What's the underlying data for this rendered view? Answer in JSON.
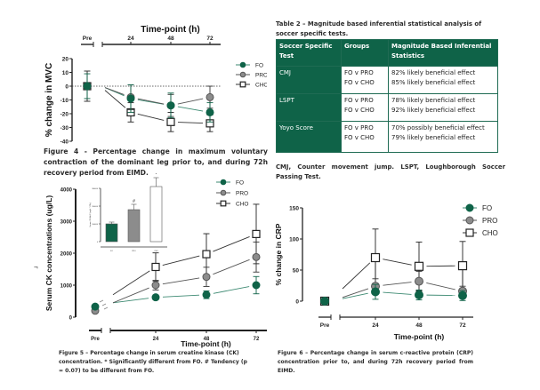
{
  "figure4": {
    "caption": "Figure 4 - Percentage change in maximum voluntary contraction of the dominant leg prior to, and during 72h recovery period from EIMD."
  },
  "figure5": {
    "caption": "Figure 5 – Percentage change in serum creatine kinase (CK) concentration. * Significantly different from FO. # Tendency (p = 0.07) to be different from FO."
  },
  "figure6": {
    "caption": "Figure 6 – Percentage change in serum c-reactive protein (CRP) concentration prior to, and during 72h recovery period from EIMD."
  },
  "table2": {
    "title": "Table 2 – Magnitude based inferential statistical analysis of soccer specific tests.",
    "headers": [
      "Soccer Specific Test",
      "Groups",
      "Magnitude Based Inferential Statistics"
    ],
    "rows": [
      {
        "test": "CMJ",
        "groups": [
          "FO v PRO",
          "FO v CHO"
        ],
        "stats": [
          "82% likely beneficial effect",
          "85% likely beneficial effect"
        ]
      },
      {
        "test": "LSPT",
        "groups": [
          "FO v PRO",
          "FO v CHO"
        ],
        "stats": [
          "78% likely beneficial effect",
          "92% likely beneficial effect"
        ]
      },
      {
        "test": "Yoyo Score",
        "groups": [
          "FO v PRO",
          "FO v CHO"
        ],
        "stats": [
          "70% possibly beneficial effect",
          "79% likely beneficial effect"
        ]
      }
    ],
    "note": "CMJ, Counter movement jump. LSPT, Loughborough Soccer Passing Test."
  },
  "colors": {
    "FO": "#0f6348",
    "PRO": "#8c8c8c",
    "CHO": "#ffffff",
    "table_header": "#0f6348"
  },
  "chart_data": [
    {
      "id": "mvc",
      "type": "line",
      "title": "",
      "xlabel": "Time-point (h)",
      "ylabel": "% change in MVC",
      "categories": [
        "Pre",
        "24",
        "48",
        "72"
      ],
      "yticks": [
        20,
        10,
        0,
        -10,
        -20,
        -30,
        -40
      ],
      "ylim": [
        -40,
        20
      ],
      "reference_line": 0,
      "legend": "right",
      "series": [
        {
          "name": "FO",
          "marker": "filled-circle",
          "values": [
            0,
            -9,
            -14,
            -19
          ],
          "err": [
            9,
            10,
            9,
            7
          ]
        },
        {
          "name": "PRO",
          "marker": "grey-circle",
          "values": [
            0,
            -8,
            -14,
            -8
          ],
          "err": [
            11,
            9,
            8,
            8
          ]
        },
        {
          "name": "CHO",
          "marker": "open-square",
          "values": [
            0,
            -19,
            -26,
            -27
          ],
          "err": [
            11,
            7,
            7,
            6
          ]
        }
      ]
    },
    {
      "id": "ck",
      "type": "line",
      "title": "",
      "xlabel": "Time-point (h)",
      "ylabel": "Serum CK concentrations (ug/L)",
      "categories": [
        "Pre",
        "24",
        "48",
        "72"
      ],
      "yticks": [
        0,
        1000,
        2000,
        3000,
        4000
      ],
      "ylim": [
        0,
        4000
      ],
      "legend": "top-right",
      "series": [
        {
          "name": "FO",
          "marker": "filled-circle",
          "values": [
            330,
            620,
            700,
            1000
          ],
          "err": [
            0,
            70,
            120,
            270
          ]
        },
        {
          "name": "PRO",
          "marker": "grey-circle",
          "values": [
            200,
            1000,
            1260,
            1880
          ],
          "err": [
            0,
            150,
            300,
            470
          ]
        },
        {
          "name": "CHO",
          "marker": "open-square",
          "values": [
            null,
            1570,
            1970,
            2600
          ],
          "err": [
            0,
            440,
            640,
            930
          ]
        }
      ],
      "inset": {
        "type": "bar",
        "ylabel": "Serum CK AUC (ug/L * 72h)",
        "categories": [
          "FO",
          "PRO",
          "CHO"
        ],
        "values": [
          100000,
          180000,
          310000
        ],
        "err": [
          10000,
          30000,
          50000
        ],
        "yticks": [
          "0",
          "100000",
          "200000",
          "300000"
        ],
        "ylim": [
          0,
          300000
        ],
        "annotations": [
          "",
          "#",
          "*"
        ]
      }
    },
    {
      "id": "crp",
      "type": "line",
      "title": "",
      "xlabel": "Time-point (h)",
      "ylabel": "% change in CRP",
      "categories": [
        "Pre",
        "24",
        "48",
        "72"
      ],
      "yticks": [
        0,
        50,
        100,
        150
      ],
      "ylim": [
        0,
        150
      ],
      "legend": "top-right",
      "series": [
        {
          "name": "FO",
          "marker": "filled-circle",
          "values": [
            0,
            15,
            10,
            9
          ],
          "err": [
            0,
            12,
            8,
            8
          ]
        },
        {
          "name": "PRO",
          "marker": "grey-circle",
          "values": [
            0,
            24,
            32,
            16
          ],
          "err": [
            0,
            12,
            16,
            8
          ]
        },
        {
          "name": "CHO",
          "marker": "open-square",
          "values": [
            0,
            70,
            56,
            57
          ],
          "err": [
            0,
            46,
            39,
            39
          ]
        }
      ]
    }
  ]
}
